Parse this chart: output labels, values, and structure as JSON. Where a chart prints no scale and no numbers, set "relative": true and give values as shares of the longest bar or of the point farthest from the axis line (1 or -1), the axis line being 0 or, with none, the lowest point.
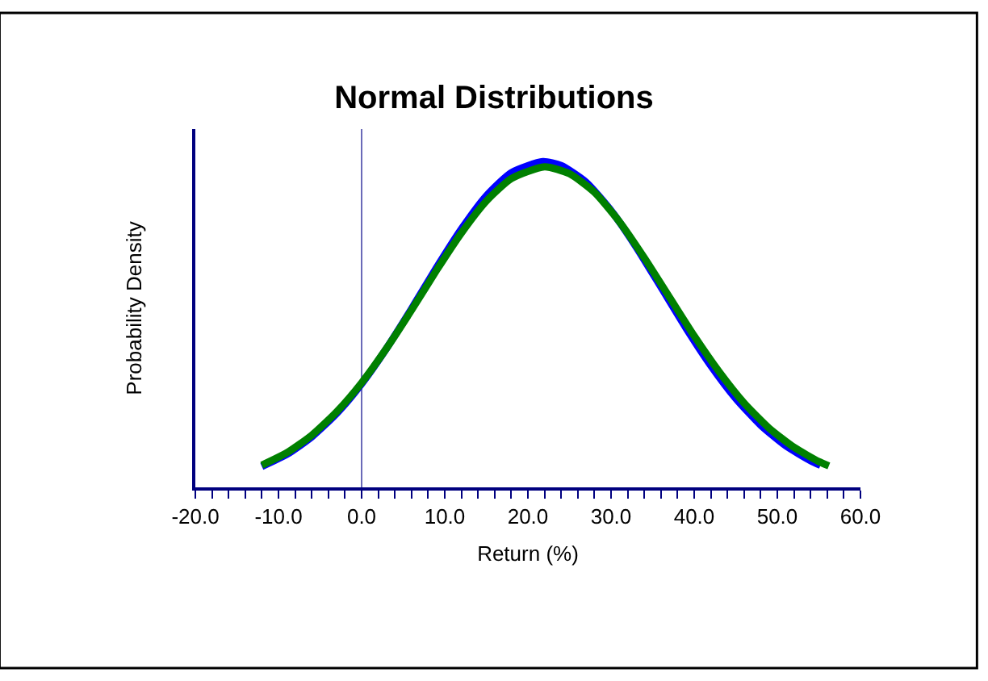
{
  "chart_data": {
    "type": "line",
    "title": "Normal Distributions",
    "xlabel": "Return (%)",
    "ylabel": "Probability Density",
    "relative": true,
    "grid": false,
    "marker": "none",
    "line_style": "solid",
    "xlim": [
      -20,
      60
    ],
    "xticks": [
      {
        "value": -20,
        "label": "-20.0"
      },
      {
        "value": -18,
        "label": null
      },
      {
        "value": -16,
        "label": null
      },
      {
        "value": -14,
        "label": null
      },
      {
        "value": -12,
        "label": null
      },
      {
        "value": -10,
        "label": "-10.0"
      },
      {
        "value": -8,
        "label": null
      },
      {
        "value": -6,
        "label": null
      },
      {
        "value": -4,
        "label": null
      },
      {
        "value": -2,
        "label": null
      },
      {
        "value": 0,
        "label": "0.0"
      },
      {
        "value": 2,
        "label": null
      },
      {
        "value": 4,
        "label": null
      },
      {
        "value": 6,
        "label": null
      },
      {
        "value": 8,
        "label": null
      },
      {
        "value": 10,
        "label": "10.0"
      },
      {
        "value": 12,
        "label": null
      },
      {
        "value": 14,
        "label": null
      },
      {
        "value": 16,
        "label": null
      },
      {
        "value": 18,
        "label": null
      },
      {
        "value": 20,
        "label": "20.0"
      },
      {
        "value": 22,
        "label": null
      },
      {
        "value": 24,
        "label": null
      },
      {
        "value": 26,
        "label": null
      },
      {
        "value": 28,
        "label": null
      },
      {
        "value": 30,
        "label": "30.0"
      },
      {
        "value": 32,
        "label": null
      },
      {
        "value": 34,
        "label": null
      },
      {
        "value": 36,
        "label": null
      },
      {
        "value": 38,
        "label": null
      },
      {
        "value": 40,
        "label": "40.0"
      },
      {
        "value": 42,
        "label": null
      },
      {
        "value": 44,
        "label": null
      },
      {
        "value": 46,
        "label": null
      },
      {
        "value": 48,
        "label": null
      },
      {
        "value": 50,
        "label": "50.0"
      },
      {
        "value": 52,
        "label": null
      },
      {
        "value": 54,
        "label": null
      },
      {
        "value": 56,
        "label": null
      },
      {
        "value": 58,
        "label": null
      },
      {
        "value": 60,
        "label": "60.0"
      }
    ],
    "ref_lines": [
      {
        "axis": "x",
        "value": 0,
        "color": "#6a6ab8",
        "line_style": "solid"
      }
    ],
    "series": [
      {
        "color": "#0000ff",
        "x": [
          -12,
          -9,
          -6,
          -3,
          0,
          3,
          6,
          9,
          12,
          15,
          18,
          21.8,
          24,
          27,
          30,
          33,
          36,
          39,
          42,
          45,
          48,
          51,
          54,
          55.2
        ],
        "values": [
          0.064,
          0.101,
          0.155,
          0.227,
          0.318,
          0.427,
          0.548,
          0.674,
          0.793,
          0.895,
          0.966,
          1,
          0.988,
          0.937,
          0.85,
          0.739,
          0.615,
          0.49,
          0.374,
          0.273,
          0.191,
          0.128,
          0.082,
          0.068
        ]
      },
      {
        "color": "#008000",
        "x": [
          -12,
          -9,
          -6,
          -3,
          0,
          3,
          6,
          9,
          12,
          15,
          18,
          22,
          25,
          28,
          31,
          34,
          37,
          40,
          43,
          46,
          49,
          52,
          55,
          56.2
        ],
        "values": [
          0.068,
          0.106,
          0.16,
          0.232,
          0.321,
          0.427,
          0.544,
          0.666,
          0.781,
          0.879,
          0.948,
          0.984,
          0.963,
          0.906,
          0.816,
          0.705,
          0.585,
          0.465,
          0.355,
          0.259,
          0.182,
          0.123,
          0.079,
          0.066
        ]
      }
    ]
  }
}
